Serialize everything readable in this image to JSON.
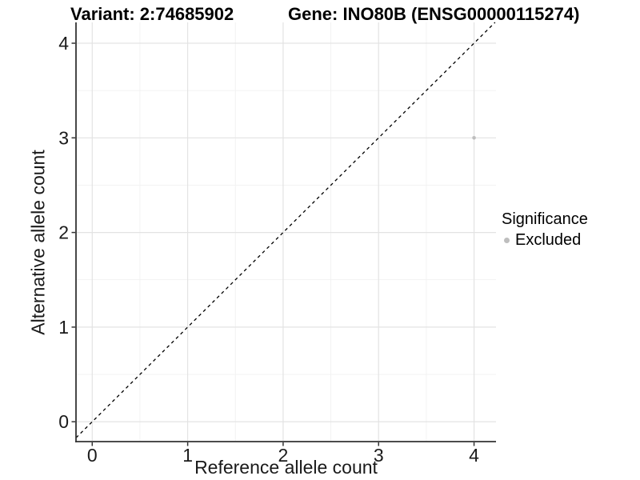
{
  "title": {
    "variant": "Variant: 2:74685902",
    "gene": "Gene: INO80B (ENSG00000115274)"
  },
  "chart_data": {
    "type": "scatter",
    "xlabel": "Reference allele count",
    "ylabel": "Alternative allele count",
    "xlim": [
      -0.17,
      4.23
    ],
    "ylim": [
      -0.21,
      4.22
    ],
    "xticks": [
      0,
      1,
      2,
      3,
      4
    ],
    "yticks": [
      0,
      1,
      2,
      3,
      4
    ],
    "grid": "major and minor gridlines, minor at 0.5 steps",
    "identity_line": {
      "type": "dashed",
      "from": "bottom-left",
      "to": "top-right",
      "equation": "y = x"
    },
    "series": [
      {
        "name": "Excluded",
        "color": "#bebebe",
        "points": [
          {
            "x": 4,
            "y": 3
          }
        ]
      }
    ],
    "legend": {
      "position": "right",
      "title": "Significance",
      "items": [
        {
          "label": "Excluded",
          "color": "#bebebe"
        }
      ]
    }
  },
  "colors": {
    "background": "#ffffff",
    "grid_major": "#e3e3e3",
    "grid_minor": "#f1f1f1",
    "axis_line": "#333333",
    "tick_label": "#1a1a1a",
    "identity_line": "#000000",
    "point": "#bebebe"
  }
}
